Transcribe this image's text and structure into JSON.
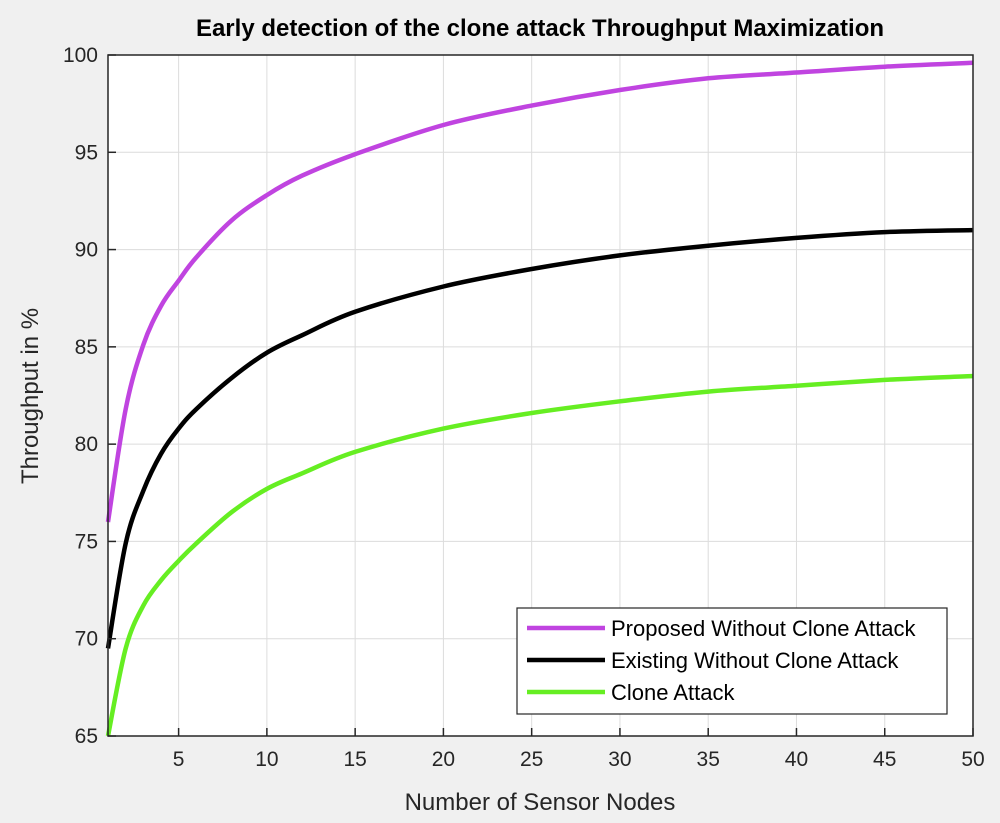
{
  "chart_data": {
    "type": "line",
    "title": "Early detection of the clone attack Throughput Maximization",
    "xlabel": "Number of Sensor Nodes",
    "ylabel": "Throughput in %",
    "xlim": [
      1,
      50
    ],
    "ylim": [
      65,
      100
    ],
    "xticks": [
      5,
      10,
      15,
      20,
      25,
      30,
      35,
      40,
      45,
      50
    ],
    "yticks": [
      65,
      70,
      75,
      80,
      85,
      90,
      95,
      100
    ],
    "grid": true,
    "legend_position": "bottom-right",
    "series": [
      {
        "name": "Proposed Without Clone Attack",
        "color": "#c044e0",
        "x": [
          1,
          2,
          3,
          4,
          5,
          6,
          8,
          10,
          12,
          15,
          20,
          25,
          30,
          35,
          40,
          45,
          50
        ],
        "y": [
          76.0,
          81.8,
          85.1,
          87.1,
          88.4,
          89.6,
          91.5,
          92.8,
          93.8,
          94.9,
          96.4,
          97.4,
          98.2,
          98.8,
          99.1,
          99.4,
          99.6
        ]
      },
      {
        "name": "Existing Without Clone Attack",
        "color": "#000000",
        "x": [
          1,
          2,
          3,
          4,
          5,
          6,
          8,
          10,
          12,
          15,
          20,
          25,
          30,
          35,
          40,
          45,
          50
        ],
        "y": [
          69.5,
          74.9,
          77.6,
          79.5,
          80.8,
          81.8,
          83.4,
          84.7,
          85.6,
          86.8,
          88.1,
          89.0,
          89.7,
          90.2,
          90.6,
          90.9,
          91.0
        ]
      },
      {
        "name": "Clone Attack",
        "color": "#66ee22",
        "x": [
          1,
          2,
          3,
          4,
          5,
          6,
          8,
          10,
          12,
          15,
          20,
          25,
          30,
          35,
          40,
          45,
          50
        ],
        "y": [
          65.0,
          69.5,
          71.7,
          73.0,
          74.0,
          74.9,
          76.5,
          77.7,
          78.5,
          79.6,
          80.8,
          81.6,
          82.2,
          82.7,
          83.0,
          83.3,
          83.5
        ]
      }
    ]
  }
}
